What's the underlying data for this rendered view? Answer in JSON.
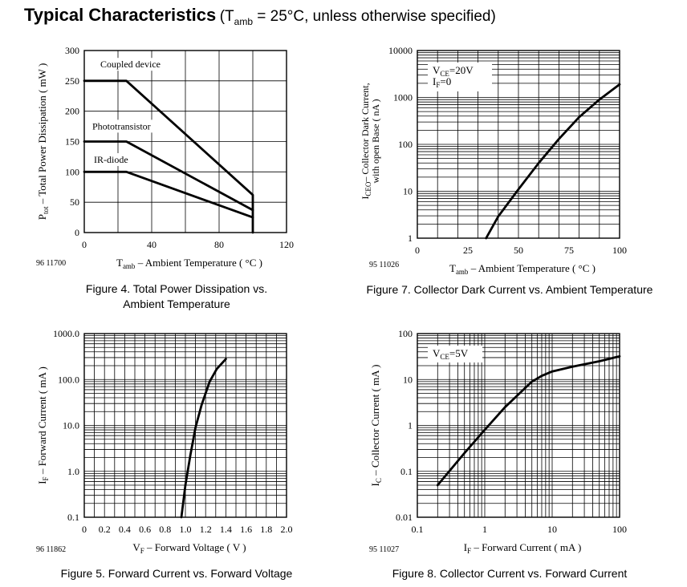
{
  "title": {
    "main": "Typical Characteristics",
    "cond_open": "(T",
    "cond_sub": "amb",
    "cond_close": " = 25°C, unless otherwise specified)"
  },
  "charts": {
    "fig4": {
      "code": "96 11700",
      "caption_line1": "Figure 4.  Total Power Dissipation vs.",
      "caption_line2": "Ambient Temperature"
    },
    "fig7": {
      "code": "95 11026",
      "caption": "Figure 7.  Collector Dark Current vs. Ambient Temperature"
    },
    "fig5": {
      "code": "96 11862",
      "caption": "Figure 5.  Forward Current vs. Forward Voltage"
    },
    "fig8": {
      "code": "95 11027",
      "caption": "Figure 8.  Collector Current vs. Forward Current"
    }
  },
  "chart_data": [
    {
      "id": "fig4",
      "type": "line",
      "ylabel_main": "P",
      "ylabel_sub": "tot",
      "ylabel_rest": " – Total Power Dissipation ( mW )",
      "xlabel_main": "T",
      "xlabel_sub": "amb",
      "xlabel_rest": "  – Ambient Temperature ( °C )",
      "xlim": [
        0,
        120
      ],
      "ylim": [
        0,
        300
      ],
      "x_ticks": [
        0,
        40,
        80,
        120
      ],
      "x_tick_labels": [
        "0",
        "40",
        "80",
        "120"
      ],
      "y_ticks": [
        0,
        50,
        100,
        150,
        200,
        250,
        300
      ],
      "y_tick_labels": [
        "0",
        "50",
        "100",
        "150",
        "200",
        "250",
        "300"
      ],
      "series": [
        {
          "name": "Coupled device",
          "x": [
            0,
            25,
            100,
            100
          ],
          "y": [
            250,
            250,
            62,
            0
          ]
        },
        {
          "name": "Phototransistor",
          "x": [
            0,
            25,
            100
          ],
          "y": [
            150,
            150,
            37
          ]
        },
        {
          "name": "IR-diode",
          "x": [
            0,
            25,
            100
          ],
          "y": [
            100,
            100,
            25
          ]
        }
      ]
    },
    {
      "id": "fig7",
      "type": "line",
      "ylabel_line1_main": "I",
      "ylabel_line1_sub": "CEO",
      "ylabel_line1_rest": "– Collector Dark Current,",
      "ylabel_line2": "with open Base ( nA )",
      "xlabel_main": "T",
      "xlabel_sub": "amb",
      "xlabel_rest": "  – Ambient Temperature ( °C )",
      "xlim": [
        0,
        100
      ],
      "ylim": [
        1,
        10000
      ],
      "y_scale": "log",
      "x_ticks": [
        0,
        25,
        50,
        75,
        100
      ],
      "x_tick_labels": [
        "0",
        "25",
        "50",
        "75",
        "100"
      ],
      "y_ticks": [
        1,
        10,
        100,
        1000,
        10000
      ],
      "y_tick_labels": [
        "1",
        "10",
        "100",
        "1000",
        "10000"
      ],
      "annotation": [
        {
          "main": "V",
          "sub": "CE",
          "rest": "=20V"
        },
        {
          "main": "I",
          "sub": "F",
          "rest": "=0"
        }
      ],
      "series": [
        {
          "x": [
            34,
            40,
            50,
            60,
            70,
            80,
            90,
            100
          ],
          "y": [
            1,
            2.9,
            11,
            40,
            130,
            380,
            900,
            1900
          ]
        }
      ]
    },
    {
      "id": "fig5",
      "type": "line",
      "ylabel_main": "I",
      "ylabel_sub": "F",
      "ylabel_rest": " – Forward Current ( mA )",
      "xlabel_main": "V",
      "xlabel_sub": "F",
      "xlabel_rest": " – Forward Voltage ( V )",
      "xlim": [
        0,
        2.0
      ],
      "ylim": [
        0.1,
        1000
      ],
      "y_scale": "log",
      "x_ticks": [
        0,
        0.2,
        0.4,
        0.6,
        0.8,
        1.0,
        1.2,
        1.4,
        1.6,
        1.8,
        2.0
      ],
      "x_tick_labels": [
        "0",
        "0.2",
        "0.4",
        "0.6",
        "0.8",
        "1.0",
        "1.2",
        "1.4",
        "1.6",
        "1.8",
        "2.0"
      ],
      "y_ticks": [
        0.1,
        1,
        10,
        100,
        1000
      ],
      "y_tick_labels": [
        "0.1",
        "1.0",
        "10.0",
        "100.0",
        "1000.0"
      ],
      "series": [
        {
          "x": [
            0.96,
            1.0,
            1.05,
            1.1,
            1.16,
            1.24,
            1.31,
            1.4
          ],
          "y": [
            0.1,
            0.5,
            2.3,
            9,
            28,
            90,
            170,
            280
          ]
        }
      ]
    },
    {
      "id": "fig8",
      "type": "line",
      "ylabel_main": "I",
      "ylabel_sub": "C",
      "ylabel_rest": " – Collector Current ( mA )",
      "xlabel_main": "I",
      "xlabel_sub": "F",
      "xlabel_rest": " – Forward Current ( mA )",
      "xlim": [
        0.1,
        100
      ],
      "ylim": [
        0.01,
        100
      ],
      "x_scale": "log",
      "y_scale": "log",
      "x_ticks": [
        0.1,
        1,
        10,
        100
      ],
      "x_tick_labels": [
        "0.1",
        "1",
        "10",
        "100"
      ],
      "y_ticks": [
        0.01,
        0.1,
        1,
        10,
        100
      ],
      "y_tick_labels": [
        "0.01",
        "0.1",
        "1",
        "10",
        "100"
      ],
      "annotation": [
        {
          "main": "V",
          "sub": "CE",
          "rest": "=5V"
        }
      ],
      "series": [
        {
          "x": [
            0.2,
            0.5,
            1,
            2,
            5,
            7,
            10,
            20,
            50,
            100
          ],
          "y": [
            0.05,
            0.25,
            0.8,
            2.5,
            9,
            12,
            15,
            19,
            25,
            32
          ]
        }
      ]
    }
  ]
}
